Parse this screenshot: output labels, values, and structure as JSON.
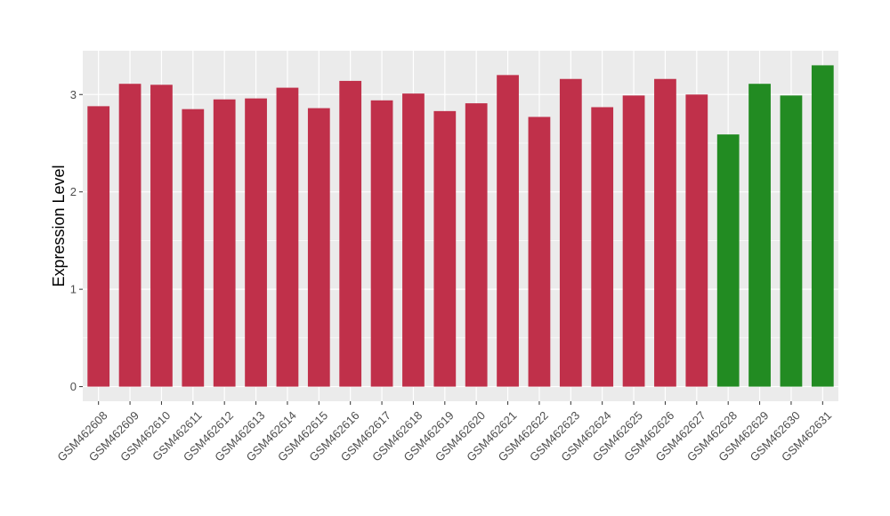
{
  "chart_data": {
    "type": "bar",
    "title": "",
    "xlabel": "",
    "ylabel": "Expression Level",
    "ylim": [
      -0.15,
      3.45
    ],
    "yticks": [
      0,
      1,
      2,
      3
    ],
    "grid": true,
    "legend": "none",
    "categories": [
      "GSM462608",
      "GSM462609",
      "GSM462610",
      "GSM462611",
      "GSM462612",
      "GSM462613",
      "GSM462614",
      "GSM462615",
      "GSM462616",
      "GSM462617",
      "GSM462618",
      "GSM462619",
      "GSM462620",
      "GSM462621",
      "GSM462622",
      "GSM462623",
      "GSM462624",
      "GSM462625",
      "GSM462626",
      "GSM462627",
      "GSM462628",
      "GSM462629",
      "GSM462630",
      "GSM462631"
    ],
    "values": [
      2.88,
      3.11,
      3.1,
      2.85,
      2.95,
      2.96,
      3.07,
      2.86,
      3.14,
      2.94,
      3.01,
      2.83,
      2.91,
      3.2,
      2.77,
      3.16,
      2.87,
      2.99,
      3.16,
      3.0,
      2.59,
      3.11,
      2.99,
      3.3
    ],
    "group": [
      "a",
      "a",
      "a",
      "a",
      "a",
      "a",
      "a",
      "a",
      "a",
      "a",
      "a",
      "a",
      "a",
      "a",
      "a",
      "a",
      "a",
      "a",
      "a",
      "a",
      "b",
      "b",
      "b",
      "b"
    ],
    "colors": {
      "a": "#c0304a",
      "b": "#228b22"
    },
    "panel_background": "#ebebeb",
    "grid_color": "#ffffff"
  }
}
